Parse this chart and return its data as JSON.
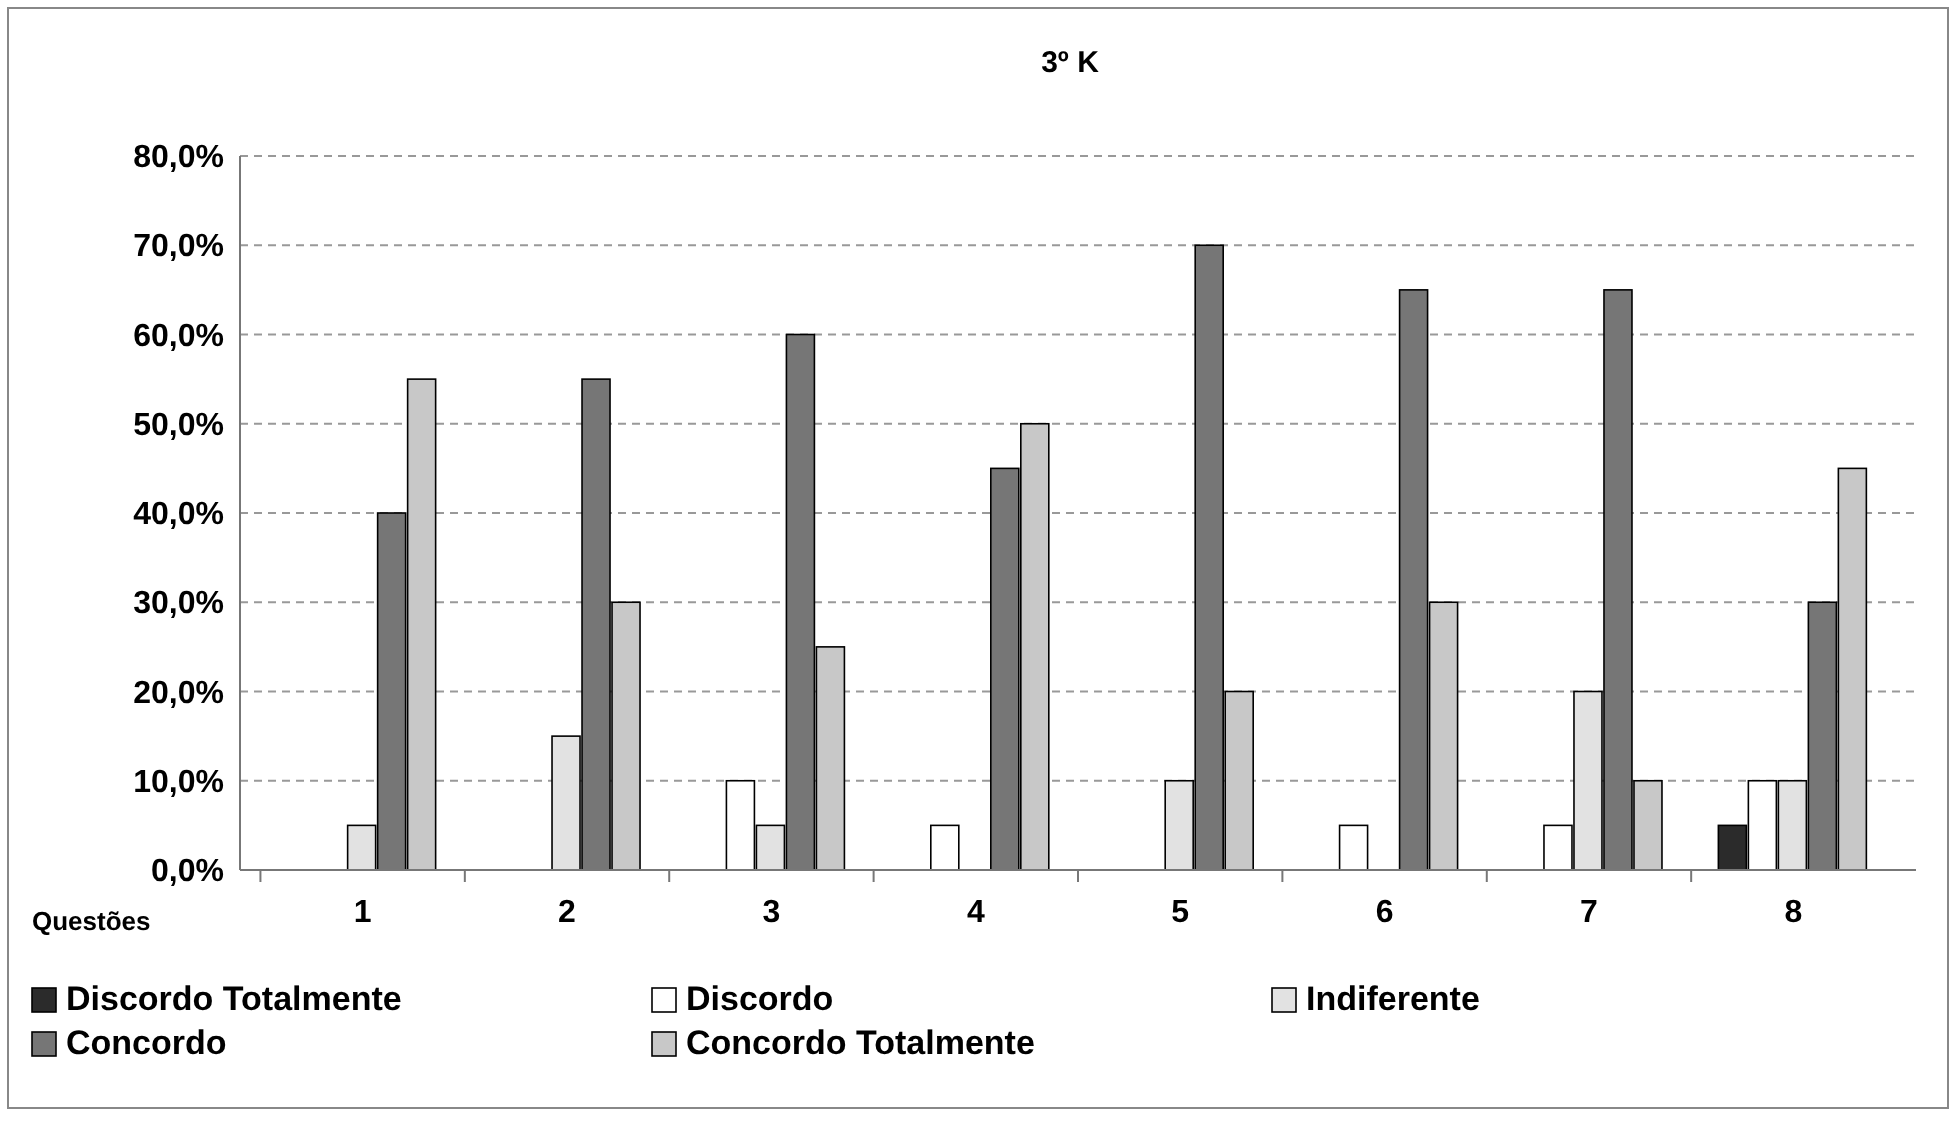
{
  "chart_data": {
    "type": "bar",
    "title": "3º K",
    "xlabel": "Questões",
    "categories": [
      "1",
      "2",
      "3",
      "4",
      "5",
      "6",
      "7",
      "8"
    ],
    "series": [
      {
        "name": "Discordo Totalmente",
        "color": "#2b2b2b",
        "values": [
          0,
          0,
          0,
          0,
          0,
          0,
          0,
          5
        ]
      },
      {
        "name": "Discordo",
        "color": "#ffffff",
        "values": [
          0,
          0,
          10,
          5,
          0,
          5,
          5,
          10
        ]
      },
      {
        "name": "Indiferente",
        "color": "#e2e2e2",
        "values": [
          5,
          15,
          5,
          0,
          10,
          0,
          20,
          10
        ]
      },
      {
        "name": "Concordo",
        "color": "#767676",
        "values": [
          40,
          55,
          60,
          45,
          70,
          65,
          65,
          30
        ]
      },
      {
        "name": "Concordo Totalmente",
        "color": "#c8c8c8",
        "values": [
          55,
          30,
          25,
          50,
          20,
          30,
          10,
          45
        ]
      }
    ],
    "ylim": [
      0,
      80
    ],
    "yticks": [
      {
        "value": 0,
        "label": "0,0%"
      },
      {
        "value": 10,
        "label": "10,0%"
      },
      {
        "value": 20,
        "label": "20,0%"
      },
      {
        "value": 30,
        "label": "30,0%"
      },
      {
        "value": 40,
        "label": "40,0%"
      },
      {
        "value": 50,
        "label": "50,0%"
      },
      {
        "value": 60,
        "label": "60,0%"
      },
      {
        "value": 70,
        "label": "70,0%"
      },
      {
        "value": 80,
        "label": "80,0%"
      }
    ],
    "grid": "y",
    "legend": "bottom"
  }
}
